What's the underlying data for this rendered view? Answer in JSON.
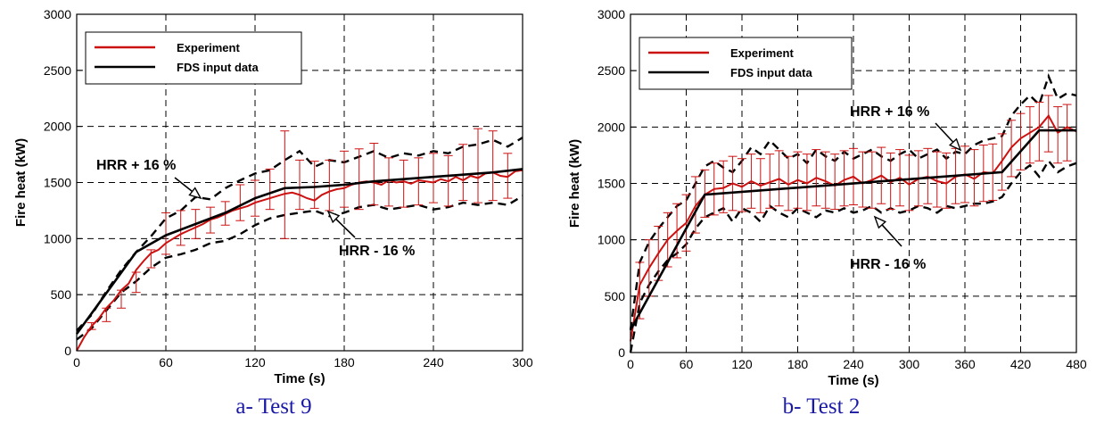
{
  "colors": {
    "experiment": "#cc1111",
    "fds": "#000000",
    "bounds": "#000000",
    "caption": "#1a1aa6"
  },
  "chart_data": [
    {
      "type": "line",
      "caption": "a- Test 9",
      "xlabel": "Time (s)",
      "ylabel": "Fire heat (kW)",
      "xlim": [
        0,
        300
      ],
      "ylim": [
        0,
        3000
      ],
      "xticks": [
        "0",
        "60",
        "120",
        "180",
        "240",
        "300"
      ],
      "yticks": [
        "0",
        "500",
        "1000",
        "1500",
        "2000",
        "2500",
        "3000"
      ],
      "grid": true,
      "legend_position": "top-left",
      "legend": [
        "Experiment",
        "FDS input data"
      ],
      "annotations": [
        {
          "text": "HRR + 16 %"
        },
        {
          "text": "HRR - 16 %"
        }
      ],
      "series": [
        {
          "name": "Experiment",
          "x": [
            0,
            5,
            10,
            15,
            20,
            25,
            30,
            35,
            40,
            45,
            50,
            55,
            60,
            65,
            70,
            75,
            80,
            85,
            90,
            95,
            100,
            105,
            110,
            115,
            120,
            125,
            130,
            135,
            140,
            145,
            150,
            155,
            160,
            165,
            170,
            175,
            180,
            185,
            190,
            195,
            200,
            205,
            210,
            215,
            220,
            225,
            230,
            235,
            240,
            245,
            250,
            255,
            260,
            265,
            270,
            275,
            280,
            285,
            290,
            295,
            300
          ],
          "y": [
            0,
            120,
            220,
            290,
            380,
            450,
            540,
            600,
            720,
            800,
            870,
            900,
            960,
            1000,
            1040,
            1070,
            1100,
            1130,
            1170,
            1190,
            1220,
            1250,
            1270,
            1290,
            1320,
            1340,
            1360,
            1380,
            1400,
            1410,
            1390,
            1360,
            1340,
            1390,
            1420,
            1440,
            1450,
            1480,
            1500,
            1510,
            1500,
            1480,
            1520,
            1500,
            1510,
            1490,
            1520,
            1510,
            1500,
            1530,
            1510,
            1550,
            1520,
            1560,
            1540,
            1580,
            1590,
            1560,
            1550,
            1600,
            1610
          ],
          "error_x": [
            10,
            20,
            30,
            40,
            50,
            60,
            70,
            80,
            90,
            100,
            110,
            120,
            130,
            140,
            150,
            160,
            170,
            180,
            190,
            200,
            210,
            220,
            230,
            240,
            250,
            260,
            270,
            280,
            290
          ],
          "error_low": [
            190,
            260,
            380,
            520,
            740,
            860,
            940,
            1000,
            1050,
            1120,
            1160,
            1200,
            1260,
            1000,
            1260,
            1270,
            1250,
            1280,
            1260,
            1300,
            1290,
            1280,
            1300,
            1320,
            1290,
            1340,
            1320,
            1340,
            1360
          ],
          "error_high": [
            250,
            380,
            540,
            700,
            900,
            1230,
            1250,
            1260,
            1280,
            1330,
            1480,
            1520,
            1620,
            1960,
            1700,
            1690,
            1700,
            1780,
            1800,
            1850,
            1720,
            1700,
            1720,
            1760,
            1740,
            1840,
            1980,
            1960,
            1760
          ]
        },
        {
          "name": "FDS input data",
          "x": [
            0,
            40,
            60,
            80,
            100,
            120,
            140,
            160,
            180,
            200,
            220,
            240,
            260,
            280,
            300
          ],
          "y": [
            150,
            880,
            1030,
            1130,
            1230,
            1360,
            1450,
            1460,
            1480,
            1510,
            1530,
            1550,
            1570,
            1590,
            1620
          ]
        },
        {
          "name": "HRR + 16 %",
          "x": [
            0,
            10,
            20,
            30,
            40,
            50,
            60,
            70,
            80,
            90,
            100,
            110,
            120,
            130,
            140,
            150,
            160,
            170,
            180,
            190,
            200,
            210,
            220,
            230,
            240,
            250,
            260,
            270,
            280,
            290,
            300
          ],
          "y": [
            180,
            320,
            530,
            720,
            880,
            1020,
            1180,
            1250,
            1370,
            1350,
            1450,
            1520,
            1580,
            1610,
            1700,
            1780,
            1640,
            1700,
            1680,
            1730,
            1780,
            1720,
            1760,
            1740,
            1780,
            1760,
            1820,
            1840,
            1880,
            1820,
            1900
          ]
        },
        {
          "name": "HRR - 16 %",
          "x": [
            0,
            10,
            20,
            30,
            40,
            50,
            60,
            70,
            80,
            90,
            100,
            110,
            120,
            130,
            140,
            150,
            160,
            170,
            180,
            190,
            200,
            210,
            220,
            230,
            240,
            250,
            260,
            270,
            280,
            290,
            300
          ],
          "y": [
            100,
            200,
            360,
            520,
            620,
            740,
            830,
            860,
            900,
            960,
            980,
            1040,
            1120,
            1180,
            1210,
            1230,
            1250,
            1200,
            1230,
            1280,
            1300,
            1260,
            1280,
            1300,
            1260,
            1280,
            1320,
            1300,
            1320,
            1300,
            1380
          ]
        }
      ]
    },
    {
      "type": "line",
      "caption": "b- Test 2",
      "xlabel": "Time (s)",
      "ylabel": "Fire heat (kW)",
      "xlim": [
        0,
        480
      ],
      "ylim": [
        0,
        3000
      ],
      "xticks": [
        "0",
        "60",
        "120",
        "180",
        "240",
        "300",
        "360",
        "420",
        "480"
      ],
      "yticks": [
        "0",
        "500",
        "1000",
        "1500",
        "2000",
        "2500",
        "3000"
      ],
      "grid": true,
      "legend_position": "top-left",
      "legend": [
        "Experiment",
        "FDS input data"
      ],
      "annotations": [
        {
          "text": "HRR + 16 %"
        },
        {
          "text": "HRR - 16 %"
        }
      ],
      "series": [
        {
          "name": "Experiment",
          "x": [
            0,
            10,
            20,
            30,
            40,
            50,
            60,
            70,
            80,
            90,
            100,
            110,
            120,
            130,
            140,
            150,
            160,
            170,
            180,
            190,
            200,
            210,
            220,
            230,
            240,
            250,
            260,
            270,
            280,
            290,
            300,
            310,
            320,
            330,
            340,
            350,
            360,
            370,
            380,
            390,
            400,
            410,
            420,
            430,
            440,
            450,
            460,
            470,
            480
          ],
          "y": [
            100,
            600,
            750,
            880,
            1000,
            1080,
            1150,
            1300,
            1400,
            1450,
            1460,
            1500,
            1470,
            1520,
            1480,
            1510,
            1540,
            1490,
            1530,
            1500,
            1550,
            1520,
            1480,
            1530,
            1560,
            1500,
            1530,
            1570,
            1510,
            1550,
            1490,
            1540,
            1560,
            1520,
            1500,
            1560,
            1580,
            1540,
            1600,
            1590,
            1700,
            1820,
            1900,
            1950,
            2000,
            2100,
            1950,
            2000,
            1960
          ],
          "error_x": [
            10,
            20,
            30,
            40,
            50,
            60,
            70,
            80,
            90,
            100,
            110,
            120,
            130,
            140,
            150,
            160,
            170,
            180,
            190,
            200,
            210,
            220,
            230,
            240,
            250,
            260,
            270,
            280,
            290,
            300,
            310,
            320,
            330,
            340,
            350,
            360,
            370,
            380,
            390,
            400,
            410,
            420,
            430,
            440,
            450,
            460,
            470
          ],
          "error_low": [
            300,
            500,
            640,
            760,
            840,
            900,
            1060,
            1200,
            1220,
            1240,
            1260,
            1250,
            1280,
            1240,
            1280,
            1300,
            1260,
            1280,
            1260,
            1300,
            1280,
            1270,
            1300,
            1310,
            1290,
            1280,
            1320,
            1270,
            1300,
            1260,
            1300,
            1320,
            1290,
            1280,
            1320,
            1330,
            1300,
            1340,
            1350,
            1440,
            1560,
            1620,
            1680,
            1700,
            1780,
            1680,
            1700
          ],
          "error_high": [
            800,
            1000,
            1120,
            1240,
            1320,
            1400,
            1560,
            1620,
            1680,
            1700,
            1740,
            1720,
            1760,
            1720,
            1760,
            1790,
            1740,
            1780,
            1760,
            1800,
            1780,
            1760,
            1790,
            1810,
            1780,
            1780,
            1820,
            1770,
            1800,
            1750,
            1790,
            1810,
            1780,
            1770,
            1810,
            1830,
            1800,
            1840,
            1850,
            1940,
            2060,
            2120,
            2180,
            2220,
            2280,
            2180,
            2200
          ]
        },
        {
          "name": "FDS input data",
          "x": [
            0,
            80,
            400,
            440,
            480
          ],
          "y": [
            200,
            1400,
            1600,
            1970,
            1970
          ]
        },
        {
          "name": "HRR + 16 %",
          "x": [
            0,
            10,
            20,
            30,
            40,
            50,
            60,
            70,
            80,
            90,
            100,
            110,
            120,
            130,
            140,
            150,
            160,
            170,
            180,
            190,
            200,
            210,
            220,
            230,
            240,
            250,
            260,
            270,
            280,
            290,
            300,
            310,
            320,
            330,
            340,
            350,
            360,
            370,
            380,
            390,
            400,
            410,
            420,
            430,
            440,
            450,
            460,
            470,
            480
          ],
          "y": [
            200,
            800,
            980,
            1100,
            1200,
            1300,
            1350,
            1500,
            1650,
            1700,
            1640,
            1600,
            1700,
            1820,
            1760,
            1880,
            1800,
            1720,
            1760,
            1680,
            1800,
            1740,
            1700,
            1780,
            1720,
            1760,
            1800,
            1740,
            1700,
            1760,
            1800,
            1720,
            1760,
            1800,
            1720,
            1780,
            1760,
            1840,
            1880,
            1900,
            1920,
            2100,
            2200,
            2280,
            2200,
            2450,
            2250,
            2300,
            2280
          ]
        },
        {
          "name": "HRR - 16 %",
          "x": [
            0,
            10,
            20,
            30,
            40,
            50,
            60,
            70,
            80,
            90,
            100,
            110,
            120,
            130,
            140,
            150,
            160,
            170,
            180,
            190,
            200,
            210,
            220,
            230,
            240,
            250,
            260,
            270,
            280,
            290,
            300,
            310,
            320,
            330,
            340,
            350,
            360,
            370,
            380,
            390,
            400,
            410,
            420,
            430,
            440,
            450,
            460,
            470,
            480
          ],
          "y": [
            0,
            440,
            600,
            720,
            820,
            880,
            960,
            1100,
            1200,
            1240,
            1280,
            1160,
            1280,
            1240,
            1160,
            1300,
            1240,
            1200,
            1280,
            1240,
            1200,
            1260,
            1240,
            1280,
            1240,
            1260,
            1300,
            1240,
            1280,
            1240,
            1260,
            1300,
            1280,
            1240,
            1300,
            1280,
            1300,
            1320,
            1320,
            1340,
            1380,
            1500,
            1600,
            1660,
            1560,
            1700,
            1600,
            1650,
            1680
          ]
        }
      ]
    }
  ]
}
